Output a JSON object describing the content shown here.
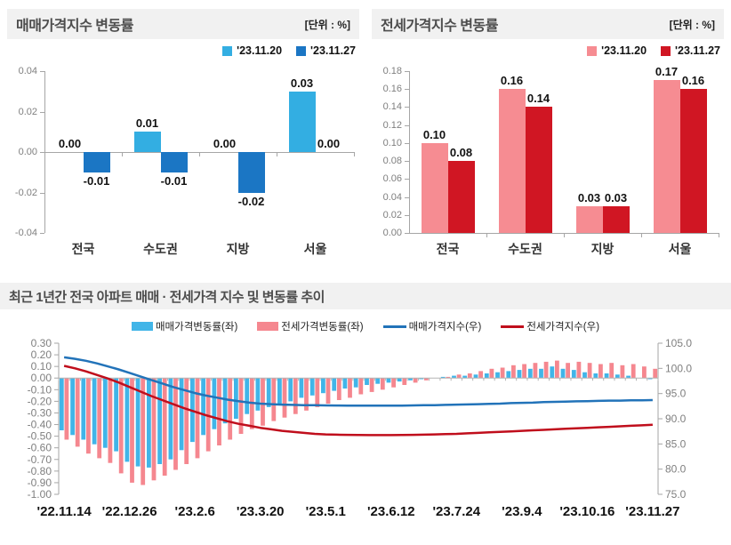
{
  "labels": {
    "unit": "[단위 : %]"
  },
  "colors": {
    "light_blue": "#33AEE2",
    "dark_blue": "#1B76C4",
    "pink": "#F68C92",
    "dark_red": "#D01623",
    "trend_bar_blue": "#41B5E8",
    "trend_bar_pink": "#F5878F",
    "line_blue": "#2273B9",
    "line_red": "#C00E1C"
  },
  "chart_data": [
    {
      "type": "bar",
      "title": "매매가격지수 변동률",
      "categories": [
        "전국",
        "수도권",
        "지방",
        "서울"
      ],
      "series": [
        {
          "name": "'23.11.20",
          "values": [
            0.0,
            0.01,
            0.0,
            0.03
          ]
        },
        {
          "name": "'23.11.27",
          "values": [
            -0.01,
            -0.01,
            -0.02,
            0.0
          ]
        }
      ],
      "ylim": [
        -0.04,
        0.04
      ],
      "yticks": [
        "0.04",
        "0.02",
        "0.00",
        "-0.02",
        "-0.04"
      ]
    },
    {
      "type": "bar",
      "title": "전세가격지수 변동률",
      "categories": [
        "전국",
        "수도권",
        "지방",
        "서울"
      ],
      "series": [
        {
          "name": "'23.11.20",
          "values": [
            0.1,
            0.16,
            0.03,
            0.17
          ]
        },
        {
          "name": "'23.11.27",
          "values": [
            0.08,
            0.14,
            0.03,
            0.16
          ]
        }
      ],
      "ylim": [
        0,
        0.18
      ],
      "yticks": [
        "0.18",
        "0.16",
        "0.14",
        "0.12",
        "0.10",
        "0.08",
        "0.06",
        "0.04",
        "0.02",
        "0.00"
      ]
    },
    {
      "type": "combo",
      "title": "최근 1년간 전국 아파트 매매 · 전세가격 지수 및 변동률 추이",
      "x_labels": [
        "'22.11.14",
        "'22.12.26",
        "'23.2.6",
        "'23.3.20",
        "'23.5.1",
        "'23.6.12",
        "'23.7.24",
        "'23.9.4",
        "'23.10.16",
        "'23.11.27"
      ],
      "x_label_positions": [
        0,
        6,
        12,
        18,
        24,
        30,
        36,
        42,
        48,
        54
      ],
      "left_ylim": [
        -1.0,
        0.3
      ],
      "left_yticks": [
        "0.30",
        "0.20",
        "0.10",
        "0.00",
        "-0.10",
        "-0.20",
        "-0.30",
        "-0.40",
        "-0.50",
        "-0.60",
        "-0.70",
        "-0.80",
        "-0.90",
        "-1.00"
      ],
      "right_ylim": [
        75,
        105
      ],
      "right_yticks": [
        "105.0",
        "100.0",
        "95.0",
        "90.0",
        "85.0",
        "80.0",
        "75.0"
      ],
      "series": [
        {
          "name": "매매가격변동률(좌)",
          "type": "bar",
          "axis": "left",
          "values": [
            -0.45,
            -0.49,
            -0.53,
            -0.57,
            -0.6,
            -0.63,
            -0.72,
            -0.76,
            -0.77,
            -0.74,
            -0.7,
            -0.62,
            -0.55,
            -0.49,
            -0.44,
            -0.39,
            -0.35,
            -0.31,
            -0.28,
            -0.25,
            -0.22,
            -0.2,
            -0.17,
            -0.15,
            -0.13,
            -0.11,
            -0.09,
            -0.08,
            -0.06,
            -0.05,
            -0.04,
            -0.03,
            -0.02,
            -0.01,
            0.0,
            0.01,
            0.02,
            0.02,
            0.03,
            0.04,
            0.05,
            0.06,
            0.07,
            0.08,
            0.08,
            0.1,
            0.08,
            0.07,
            0.05,
            0.04,
            0.04,
            0.03,
            0.02,
            0.0,
            -0.01
          ]
        },
        {
          "name": "전세가격변동률(좌)",
          "type": "bar",
          "axis": "left",
          "values": [
            -0.53,
            -0.59,
            -0.65,
            -0.69,
            -0.73,
            -0.82,
            -0.9,
            -0.92,
            -0.88,
            -0.84,
            -0.79,
            -0.74,
            -0.69,
            -0.63,
            -0.58,
            -0.53,
            -0.48,
            -0.44,
            -0.41,
            -0.37,
            -0.34,
            -0.31,
            -0.28,
            -0.25,
            -0.22,
            -0.19,
            -0.17,
            -0.14,
            -0.12,
            -0.1,
            -0.08,
            -0.06,
            -0.04,
            -0.02,
            0.0,
            0.01,
            0.03,
            0.04,
            0.06,
            0.08,
            0.09,
            0.11,
            0.12,
            0.13,
            0.14,
            0.15,
            0.13,
            0.14,
            0.13,
            0.12,
            0.13,
            0.11,
            0.12,
            0.1,
            0.08
          ]
        },
        {
          "name": "매매가격지수(우)",
          "type": "line",
          "axis": "right",
          "values": [
            102.2,
            101.9,
            101.5,
            101.0,
            100.4,
            99.8,
            99.1,
            98.4,
            97.7,
            97.0,
            96.3,
            95.7,
            95.1,
            94.6,
            94.2,
            93.8,
            93.5,
            93.2,
            93.0,
            92.9,
            92.8,
            92.75,
            92.7,
            92.68,
            92.65,
            92.63,
            92.6,
            92.6,
            92.6,
            92.6,
            92.6,
            92.62,
            92.65,
            92.68,
            92.7,
            92.75,
            92.8,
            92.85,
            92.9,
            92.95,
            93.0,
            93.1,
            93.15,
            93.2,
            93.3,
            93.35,
            93.4,
            93.45,
            93.5,
            93.55,
            93.6,
            93.6,
            93.65,
            93.65,
            93.7
          ]
        },
        {
          "name": "전세가격지수(우)",
          "type": "line",
          "axis": "right",
          "values": [
            100.5,
            100.0,
            99.4,
            98.7,
            98.0,
            97.2,
            96.3,
            95.4,
            94.5,
            93.7,
            92.9,
            92.1,
            91.4,
            90.7,
            90.1,
            89.5,
            89.0,
            88.6,
            88.2,
            87.9,
            87.6,
            87.4,
            87.2,
            87.0,
            86.9,
            86.85,
            86.8,
            86.78,
            86.75,
            86.75,
            86.75,
            86.78,
            86.8,
            86.85,
            86.9,
            86.95,
            87.0,
            87.1,
            87.2,
            87.3,
            87.4,
            87.5,
            87.6,
            87.7,
            87.8,
            87.9,
            88.0,
            88.1,
            88.2,
            88.3,
            88.4,
            88.5,
            88.6,
            88.7,
            88.8
          ]
        }
      ]
    }
  ]
}
